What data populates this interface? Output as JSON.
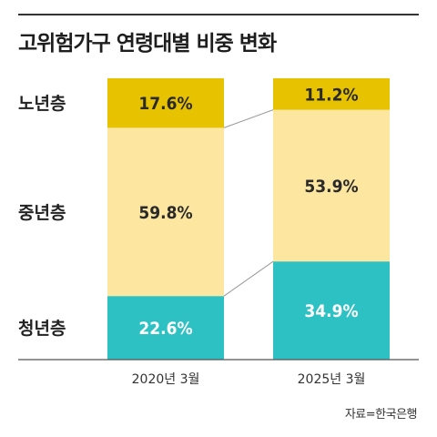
{
  "title": "고위험가구 연령대별 비중 변화",
  "source": "자료=한국은행",
  "colors": {
    "old": "#e6c200",
    "middle": "#fde6a0",
    "young": "#2ec1c4",
    "axis": "#555555",
    "connector": "#999999"
  },
  "chart_data": {
    "type": "bar",
    "stacked": true,
    "percent": true,
    "categories": [
      "2020년 3월",
      "2025년 3월"
    ],
    "series": [
      {
        "name": "청년층",
        "values": [
          22.6,
          34.9
        ],
        "color": "#2ec1c4"
      },
      {
        "name": "중년층",
        "values": [
          59.8,
          53.9
        ],
        "color": "#fde6a0"
      },
      {
        "name": "노년층",
        "values": [
          17.6,
          11.2
        ],
        "color": "#e6c200"
      }
    ],
    "ylim": [
      0,
      100
    ],
    "legend_placement": "left"
  }
}
